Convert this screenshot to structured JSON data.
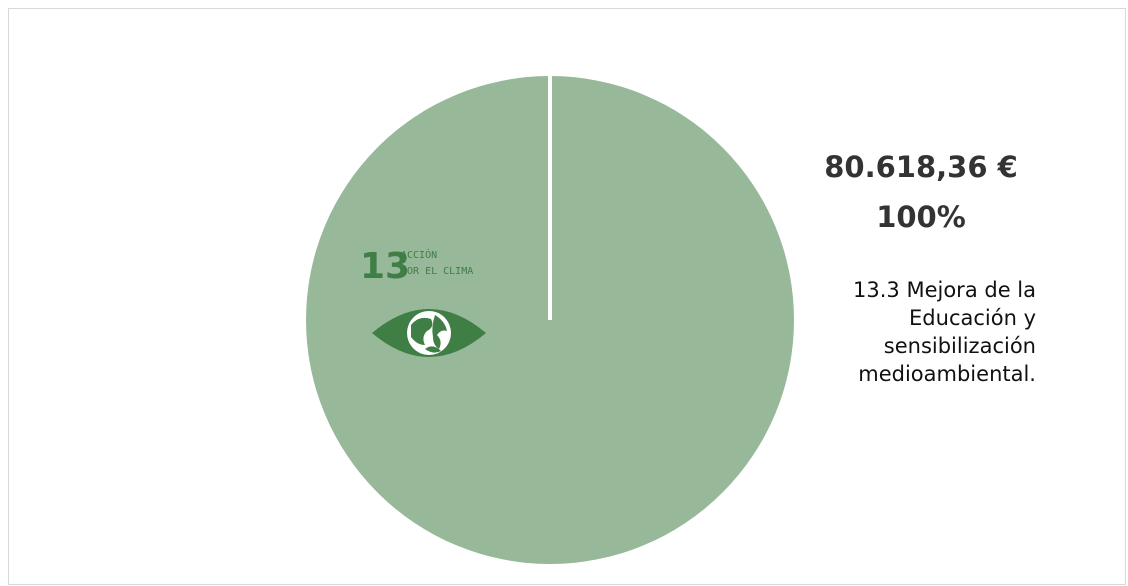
{
  "chart_data": {
    "type": "pie",
    "slices": [
      {
        "label_lines": [
          "13.3 Mejora de la",
          "Educación y",
          "sensibilización",
          "medioambiental."
        ],
        "value": 80618.36,
        "value_label": "80.618,36 €",
        "percent_label": "100%",
        "percent": 100,
        "color": "#97b899"
      }
    ]
  },
  "logo": {
    "number": "13",
    "line1": "ACCIÓN",
    "line2": "POR EL CLIMA",
    "color": "#3f7e44",
    "icon": "eye-globe-icon"
  },
  "colors": {
    "separator": "#ffffff"
  }
}
